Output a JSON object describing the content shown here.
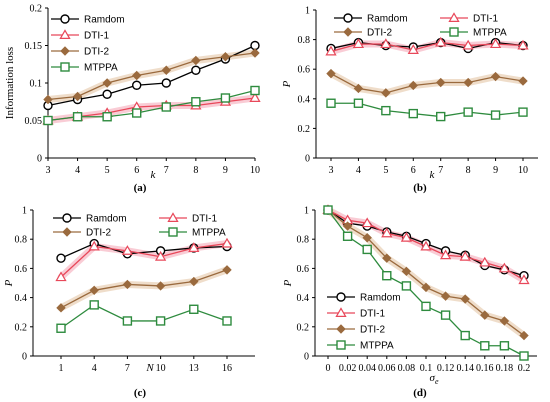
{
  "colors": {
    "Ramdom": "#000000",
    "DTI-1": "#e8485a",
    "DTI-2": "#9a6a3e",
    "MTPPA": "#2e8b3e",
    "glow_dti1": "#f7b6c3",
    "glow_dti2": "#e8cfb3",
    "axis": "#000000"
  },
  "chart_data": [
    {
      "type": "line",
      "caption": "(a)",
      "xlabel": "k",
      "ylabel": "Information loss",
      "x": [
        3,
        4,
        5,
        6,
        7,
        8,
        9,
        10
      ],
      "xticks": [
        "3",
        "4",
        "5",
        "6",
        "7",
        "8",
        "9",
        "10"
      ],
      "ylim": [
        0,
        0.2
      ],
      "yticks": [
        "0",
        "0.05",
        "0.1",
        "0.15",
        "0.2"
      ],
      "legend_position": "top-left",
      "series": [
        {
          "name": "Ramdom",
          "marker": "circle",
          "values": [
            0.07,
            0.078,
            0.085,
            0.097,
            0.1,
            0.117,
            0.132,
            0.15
          ]
        },
        {
          "name": "DTI-1",
          "marker": "triangle",
          "values": [
            0.05,
            0.055,
            0.06,
            0.068,
            0.07,
            0.07,
            0.075,
            0.08
          ]
        },
        {
          "name": "DTI-2",
          "marker": "diamond",
          "values": [
            0.078,
            0.082,
            0.1,
            0.11,
            0.117,
            0.13,
            0.135,
            0.14
          ]
        },
        {
          "name": "MTPPA",
          "marker": "square",
          "values": [
            0.05,
            0.055,
            0.055,
            0.06,
            0.068,
            0.075,
            0.08,
            0.09
          ]
        }
      ]
    },
    {
      "type": "line",
      "caption": "(b)",
      "xlabel": "k",
      "ylabel": "P",
      "x": [
        3,
        4,
        5,
        6,
        7,
        8,
        9,
        10
      ],
      "xticks": [
        "3",
        "4",
        "5",
        "6",
        "7",
        "8",
        "9",
        "10"
      ],
      "ylim": [
        0,
        1
      ],
      "yticks": [
        "0",
        "0.2",
        "0.4",
        "0.6",
        "0.8",
        "1"
      ],
      "legend_position": "top",
      "series": [
        {
          "name": "Ramdom",
          "marker": "circle",
          "values": [
            0.74,
            0.78,
            0.76,
            0.75,
            0.78,
            0.74,
            0.78,
            0.76
          ]
        },
        {
          "name": "DTI-1",
          "marker": "triangle",
          "values": [
            0.72,
            0.77,
            0.77,
            0.73,
            0.78,
            0.76,
            0.77,
            0.76
          ]
        },
        {
          "name": "DTI-2",
          "marker": "diamond",
          "values": [
            0.57,
            0.47,
            0.44,
            0.49,
            0.51,
            0.51,
            0.55,
            0.52
          ]
        },
        {
          "name": "MTPPA",
          "marker": "square",
          "values": [
            0.37,
            0.37,
            0.32,
            0.3,
            0.28,
            0.31,
            0.29,
            0.31
          ]
        }
      ]
    },
    {
      "type": "line",
      "caption": "(c)",
      "xlabel": "N",
      "ylabel": "P",
      "x": [
        1,
        4,
        7,
        10,
        13,
        16
      ],
      "xticks": [
        "1",
        "4",
        "7",
        "10",
        "13",
        "16"
      ],
      "ylim": [
        0,
        1
      ],
      "yticks": [
        "0",
        "0.2",
        "0.4",
        "0.6",
        "0.8",
        "1"
      ],
      "legend_position": "top",
      "series": [
        {
          "name": "Ramdom",
          "marker": "circle",
          "values": [
            0.67,
            0.77,
            0.7,
            0.72,
            0.74,
            0.75
          ]
        },
        {
          "name": "DTI-1",
          "marker": "triangle",
          "values": [
            0.54,
            0.75,
            0.72,
            0.68,
            0.74,
            0.77
          ]
        },
        {
          "name": "DTI-2",
          "marker": "diamond",
          "values": [
            0.33,
            0.45,
            0.49,
            0.48,
            0.51,
            0.59
          ]
        },
        {
          "name": "MTPPA",
          "marker": "square",
          "values": [
            0.19,
            0.35,
            0.24,
            0.24,
            0.32,
            0.24
          ]
        }
      ]
    },
    {
      "type": "line",
      "caption": "(d)",
      "xlabel": "σ",
      "xlabel_sub": "e",
      "ylabel": "P",
      "x": [
        0,
        0.02,
        0.04,
        0.06,
        0.08,
        0.1,
        0.12,
        0.14,
        0.16,
        0.18,
        0.2
      ],
      "xticks": [
        "0",
        "0.02",
        "0.04",
        "0.06",
        "0.08",
        "0.1",
        "0.12",
        "0.14",
        "0.16",
        "0.18",
        "0.2"
      ],
      "ylim": [
        0,
        1
      ],
      "yticks": [
        "0",
        "0.2",
        "0.4",
        "0.6",
        "0.8",
        "1"
      ],
      "legend_position": "bottom-left",
      "series": [
        {
          "name": "Ramdom",
          "marker": "circle",
          "values": [
            1.0,
            0.91,
            0.89,
            0.85,
            0.82,
            0.77,
            0.72,
            0.69,
            0.62,
            0.59,
            0.55
          ]
        },
        {
          "name": "DTI-1",
          "marker": "triangle",
          "values": [
            1.0,
            0.93,
            0.91,
            0.84,
            0.81,
            0.75,
            0.69,
            0.68,
            0.64,
            0.6,
            0.52
          ]
        },
        {
          "name": "DTI-2",
          "marker": "diamond",
          "values": [
            1.0,
            0.89,
            0.81,
            0.67,
            0.58,
            0.47,
            0.41,
            0.39,
            0.28,
            0.24,
            0.14
          ]
        },
        {
          "name": "MTPPA",
          "marker": "square",
          "values": [
            1.0,
            0.82,
            0.73,
            0.55,
            0.48,
            0.34,
            0.28,
            0.14,
            0.07,
            0.07,
            0.0
          ]
        }
      ]
    }
  ]
}
